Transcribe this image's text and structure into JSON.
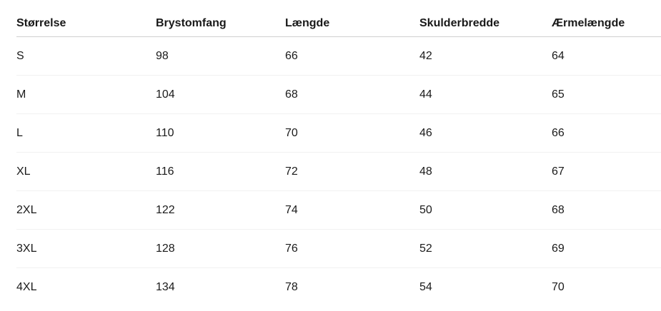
{
  "colors": {
    "background": "#ffffff",
    "text": "#1a1a1a",
    "header_text": "#191919",
    "header_border": "#cfcfcf",
    "row_border": "#f1f1f1"
  },
  "size_table": {
    "columns": [
      "Størrelse",
      "Brystomfang",
      "Længde",
      "Skulderbredde",
      "Ærmelængde"
    ],
    "rows": [
      [
        "S",
        "98",
        "66",
        "42",
        "64"
      ],
      [
        "M",
        "104",
        "68",
        "44",
        "65"
      ],
      [
        "L",
        "110",
        "70",
        "46",
        "66"
      ],
      [
        "XL",
        "116",
        "72",
        "48",
        "67"
      ],
      [
        "2XL",
        "122",
        "74",
        "50",
        "68"
      ],
      [
        "3XL",
        "128",
        "76",
        "52",
        "69"
      ],
      [
        "4XL",
        "134",
        "78",
        "54",
        "70"
      ]
    ]
  },
  "chart_data": {
    "type": "table",
    "title": "",
    "columns": [
      "Størrelse",
      "Brystomfang",
      "Længde",
      "Skulderbredde",
      "Ærmelængde"
    ],
    "rows": [
      [
        "S",
        98,
        66,
        42,
        64
      ],
      [
        "M",
        104,
        68,
        44,
        65
      ],
      [
        "L",
        110,
        70,
        46,
        66
      ],
      [
        "XL",
        116,
        72,
        48,
        67
      ],
      [
        "2XL",
        122,
        74,
        50,
        68
      ],
      [
        "3XL",
        128,
        76,
        52,
        69
      ],
      [
        "4XL",
        134,
        78,
        54,
        70
      ]
    ]
  }
}
